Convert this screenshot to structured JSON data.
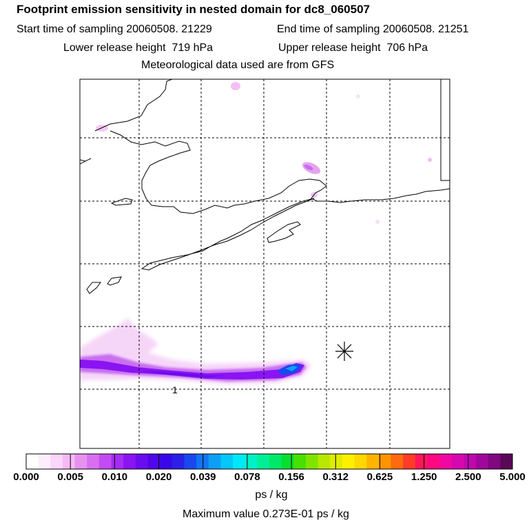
{
  "title": "Footprint emission sensitivity in nested domain for dc8_060507",
  "sampling": {
    "start_label": "Start time of sampling",
    "start_value": "20060508. 21229",
    "end_label": "End time of sampling",
    "end_value": "20060508. 21251"
  },
  "release": {
    "lower_label": "Lower release height",
    "lower_value": "719 hPa",
    "upper_label": "Upper release height",
    "upper_value": "706 hPa"
  },
  "met_line": "Meteorological data used are from GFS",
  "map": {
    "contour_label": "1",
    "receptor_marker": "asterisk",
    "grid": "dashed"
  },
  "colorbar": {
    "labels": [
      "0.000",
      "0.005",
      "0.010",
      "0.020",
      "0.039",
      "0.078",
      "0.156",
      "0.312",
      "0.625",
      "1.250",
      "2.500",
      "5.000"
    ],
    "colors": [
      "#ffffff",
      "#fdeefd",
      "#fbd5fb",
      "#f6b9f6",
      "#e592ef",
      "#d86ff0",
      "#c24bf2",
      "#a52cf4",
      "#8a14f2",
      "#6a0cf0",
      "#5008ea",
      "#3a08e8",
      "#2a20e8",
      "#1a48ee",
      "#1275f4",
      "#0f9ef6",
      "#08c6f8",
      "#00e8f8",
      "#00f0c8",
      "#00ee98",
      "#00e868",
      "#08e030",
      "#48e000",
      "#80e400",
      "#b8e800",
      "#e0ec00",
      "#fff000",
      "#ffd800",
      "#ffb400",
      "#ff9400",
      "#ff6a10",
      "#ff3c28",
      "#ff1858",
      "#ff0880",
      "#f008a0",
      "#d808b0",
      "#c008b0",
      "#a0089c",
      "#800880",
      "#5a0858"
    ],
    "unit": "ps / kg",
    "max_label": "Maximum value  0.273E-01 ps / kg"
  }
}
